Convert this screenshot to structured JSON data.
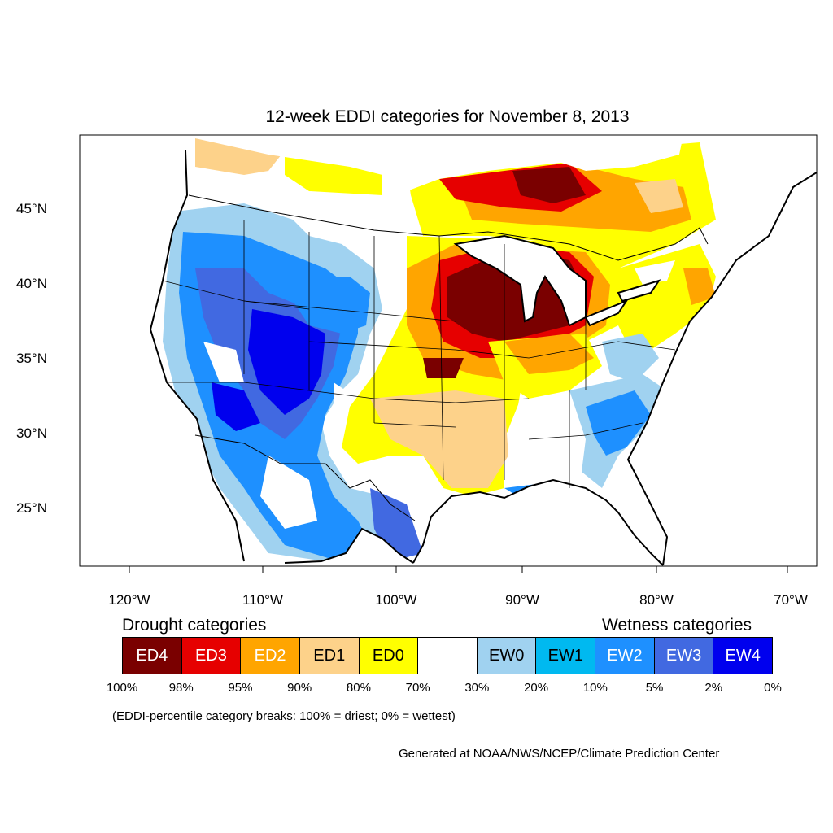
{
  "title": "12-week EDDI categories for November 8, 2013",
  "lat_labels": [
    "45°N",
    "40°N",
    "35°N",
    "30°N",
    "25°N"
  ],
  "lon_labels": [
    "120°W",
    "110°W",
    "100°W",
    "90°W",
    "80°W",
    "70°W"
  ],
  "legend": {
    "drought_heading": "Drought categories",
    "wetness_heading": "Wetness categories",
    "categories": [
      {
        "label": "ED4",
        "color": "#7a0000",
        "text_color": "#ffffff"
      },
      {
        "label": "ED3",
        "color": "#e60000",
        "text_color": "#ffffff"
      },
      {
        "label": "ED2",
        "color": "#ffa500",
        "text_color": "#ffffff"
      },
      {
        "label": "ED1",
        "color": "#fdd28a",
        "text_color": "#000000"
      },
      {
        "label": "ED0",
        "color": "#ffff00",
        "text_color": "#000000"
      },
      {
        "label": "",
        "color": "#ffffff",
        "text_color": "#000000"
      },
      {
        "label": "EW0",
        "color": "#a0d2f0",
        "text_color": "#000000"
      },
      {
        "label": "EW1",
        "color": "#00b9f0",
        "text_color": "#000000"
      },
      {
        "label": "EW2",
        "color": "#1e90ff",
        "text_color": "#ffffff"
      },
      {
        "label": "EW3",
        "color": "#4169e1",
        "text_color": "#ffffff"
      },
      {
        "label": "EW4",
        "color": "#0000ee",
        "text_color": "#ffffff"
      }
    ],
    "breaks": [
      "100%",
      "98%",
      "95%",
      "90%",
      "80%",
      "70%",
      "30%",
      "20%",
      "10%",
      "5%",
      "2%",
      "0%"
    ]
  },
  "note": "(EDDI-percentile category breaks: 100% = driest; 0% = wettest)",
  "credit": "Generated at NOAA/NWS/NCEP/Climate Prediction Center"
}
